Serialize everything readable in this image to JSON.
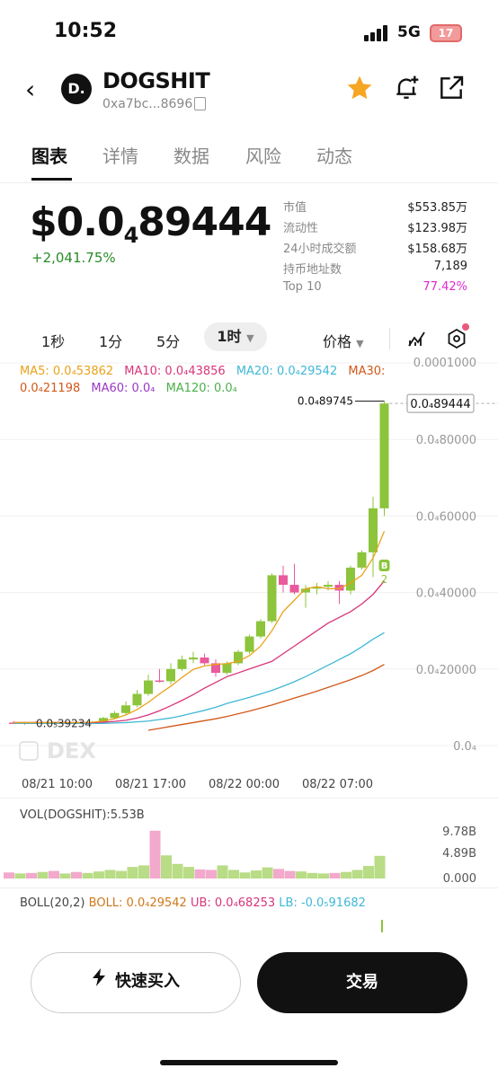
{
  "status": {
    "time": "10:52",
    "network": "5G",
    "battery": "17"
  },
  "token": {
    "name": "DOGSHIT",
    "logo_letter": "D.",
    "address": "0xa7bc...8696"
  },
  "tabs": [
    "图表",
    "详情",
    "数据",
    "风险",
    "动态"
  ],
  "price": {
    "prefix": "$0.0",
    "sub": "4",
    "digits": "89444",
    "change": "+2,041.75%"
  },
  "stats": [
    {
      "k": "市值",
      "v": "$553.85万"
    },
    {
      "k": "流动性",
      "v": "$123.98万"
    },
    {
      "k": "24小时成交额",
      "v": "$158.68万"
    },
    {
      "k": "持币地址数",
      "v": "7,189"
    },
    {
      "k": "Top 10",
      "v": "77.42%"
    }
  ],
  "intervals": [
    "1秒",
    "1分",
    "5分",
    "1时"
  ],
  "price_toggle": "价格",
  "ma_legend": [
    {
      "t": "MA5: 0.0₄53862",
      "c": "#e8a21a"
    },
    {
      "t": "MA10: 0.0₄43856",
      "c": "#d8357a"
    },
    {
      "t": "MA20: 0.0₄29542",
      "c": "#3fb8d6"
    },
    {
      "t": "MA30: 0.0₄21198",
      "c": "#d0581a"
    },
    {
      "t": "MA60: 0.0₄",
      "c": "#9b38c4"
    },
    {
      "t": "MA120: 0.0₄",
      "c": "#4bb04b"
    }
  ],
  "yaxis": [
    "0.0001000",
    "0.0₄80000",
    "0.0₄60000",
    "0.0₄40000",
    "0.0₄20000",
    "0.0₄"
  ],
  "high_label": "0.0₄89745",
  "current_label": "0.0₄89444",
  "low_label": "0.0₅39234",
  "watermark": "DEX",
  "markers": {
    "b": "B",
    "num": "2"
  },
  "xaxis": [
    "08/21 10:00",
    "08/21 17:00",
    "08/22 00:00",
    "08/22 07:00"
  ],
  "vol": {
    "legend": "VOL(DOGSHIT):5.53B",
    "axis": [
      "9.78B",
      "4.89B",
      "0.000"
    ]
  },
  "boll": {
    "name": "BOLL(20,2)",
    "boll": "BOLL: 0.0₄29542",
    "ub": "UB: 0.0₄68253",
    "lb": "LB: -0.0₅91682"
  },
  "buttons": {
    "quick_buy": "快速买入",
    "trade": "交易"
  },
  "colors": {
    "up": "#8cc43c",
    "down": "#e85a9b",
    "accent": "#e02ad0"
  },
  "chart_data": {
    "type": "candlestick",
    "ylim": [
      0,
      1.0
    ],
    "candles": [
      {
        "o": 0.06,
        "h": 0.064,
        "l": 0.056,
        "c": 0.058
      },
      {
        "o": 0.058,
        "h": 0.062,
        "l": 0.054,
        "c": 0.06
      },
      {
        "o": 0.06,
        "h": 0.064,
        "l": 0.056,
        "c": 0.058
      },
      {
        "o": 0.058,
        "h": 0.063,
        "l": 0.055,
        "c": 0.06
      },
      {
        "o": 0.06,
        "h": 0.064,
        "l": 0.056,
        "c": 0.059
      },
      {
        "o": 0.059,
        "h": 0.063,
        "l": 0.055,
        "c": 0.061
      },
      {
        "o": 0.061,
        "h": 0.065,
        "l": 0.057,
        "c": 0.06
      },
      {
        "o": 0.06,
        "h": 0.064,
        "l": 0.057,
        "c": 0.062
      },
      {
        "o": 0.062,
        "h": 0.075,
        "l": 0.06,
        "c": 0.072
      },
      {
        "o": 0.072,
        "h": 0.09,
        "l": 0.07,
        "c": 0.085
      },
      {
        "o": 0.085,
        "h": 0.115,
        "l": 0.08,
        "c": 0.105
      },
      {
        "o": 0.105,
        "h": 0.145,
        "l": 0.1,
        "c": 0.135
      },
      {
        "o": 0.135,
        "h": 0.185,
        "l": 0.13,
        "c": 0.17
      },
      {
        "o": 0.17,
        "h": 0.2,
        "l": 0.165,
        "c": 0.168
      },
      {
        "o": 0.168,
        "h": 0.215,
        "l": 0.16,
        "c": 0.2
      },
      {
        "o": 0.2,
        "h": 0.235,
        "l": 0.195,
        "c": 0.225
      },
      {
        "o": 0.225,
        "h": 0.245,
        "l": 0.215,
        "c": 0.23
      },
      {
        "o": 0.23,
        "h": 0.24,
        "l": 0.21,
        "c": 0.215
      },
      {
        "o": 0.215,
        "h": 0.225,
        "l": 0.18,
        "c": 0.19
      },
      {
        "o": 0.19,
        "h": 0.22,
        "l": 0.185,
        "c": 0.215
      },
      {
        "o": 0.215,
        "h": 0.25,
        "l": 0.21,
        "c": 0.245
      },
      {
        "o": 0.245,
        "h": 0.29,
        "l": 0.24,
        "c": 0.285
      },
      {
        "o": 0.285,
        "h": 0.33,
        "l": 0.28,
        "c": 0.325
      },
      {
        "o": 0.325,
        "h": 0.45,
        "l": 0.32,
        "c": 0.445
      },
      {
        "o": 0.445,
        "h": 0.47,
        "l": 0.4,
        "c": 0.42
      },
      {
        "o": 0.42,
        "h": 0.475,
        "l": 0.395,
        "c": 0.4
      },
      {
        "o": 0.4,
        "h": 0.42,
        "l": 0.36,
        "c": 0.41
      },
      {
        "o": 0.41,
        "h": 0.425,
        "l": 0.395,
        "c": 0.415
      },
      {
        "o": 0.415,
        "h": 0.43,
        "l": 0.405,
        "c": 0.42
      },
      {
        "o": 0.42,
        "h": 0.43,
        "l": 0.37,
        "c": 0.405
      },
      {
        "o": 0.405,
        "h": 0.47,
        "l": 0.395,
        "c": 0.465
      },
      {
        "o": 0.465,
        "h": 0.51,
        "l": 0.46,
        "c": 0.505
      },
      {
        "o": 0.505,
        "h": 0.65,
        "l": 0.44,
        "c": 0.62
      },
      {
        "o": 0.62,
        "h": 0.9,
        "l": 0.6,
        "c": 0.894
      }
    ],
    "ma5": [
      0.06,
      0.06,
      0.06,
      0.06,
      0.06,
      0.06,
      0.06,
      0.061,
      0.064,
      0.07,
      0.08,
      0.094,
      0.113,
      0.135,
      0.155,
      0.178,
      0.199,
      0.208,
      0.212,
      0.214,
      0.22,
      0.235,
      0.26,
      0.3,
      0.35,
      0.38,
      0.41,
      0.415,
      0.41,
      0.41,
      0.425,
      0.445,
      0.49,
      0.56
    ],
    "ma10": [
      0.06,
      0.06,
      0.06,
      0.06,
      0.06,
      0.06,
      0.06,
      0.06,
      0.061,
      0.063,
      0.066,
      0.072,
      0.08,
      0.091,
      0.104,
      0.118,
      0.133,
      0.15,
      0.165,
      0.18,
      0.19,
      0.2,
      0.21,
      0.22,
      0.24,
      0.26,
      0.28,
      0.3,
      0.32,
      0.335,
      0.35,
      0.37,
      0.395,
      0.43
    ],
    "ma20": [
      0.058,
      0.058,
      0.058,
      0.058,
      0.058,
      0.058,
      0.058,
      0.058,
      0.058,
      0.059,
      0.06,
      0.062,
      0.064,
      0.068,
      0.072,
      0.078,
      0.085,
      0.092,
      0.1,
      0.11,
      0.118,
      0.126,
      0.135,
      0.144,
      0.155,
      0.167,
      0.18,
      0.195,
      0.21,
      0.225,
      0.24,
      0.258,
      0.278,
      0.295
    ],
    "ma30": [
      null,
      null,
      null,
      null,
      null,
      null,
      null,
      null,
      null,
      null,
      null,
      null,
      0.04,
      0.045,
      0.05,
      0.055,
      0.06,
      0.065,
      0.07,
      0.076,
      0.083,
      0.09,
      0.098,
      0.106,
      0.115,
      0.124,
      0.133,
      0.142,
      0.152,
      0.162,
      0.172,
      0.183,
      0.196,
      0.212
    ],
    "volume": [
      0.12,
      0.1,
      0.11,
      0.13,
      0.15,
      0.1,
      0.13,
      0.11,
      0.14,
      0.17,
      0.15,
      0.23,
      0.26,
      0.95,
      0.46,
      0.29,
      0.23,
      0.18,
      0.17,
      0.26,
      0.17,
      0.12,
      0.16,
      0.22,
      0.19,
      0.15,
      0.14,
      0.11,
      0.1,
      0.11,
      0.13,
      0.17,
      0.25,
      0.45
    ]
  }
}
